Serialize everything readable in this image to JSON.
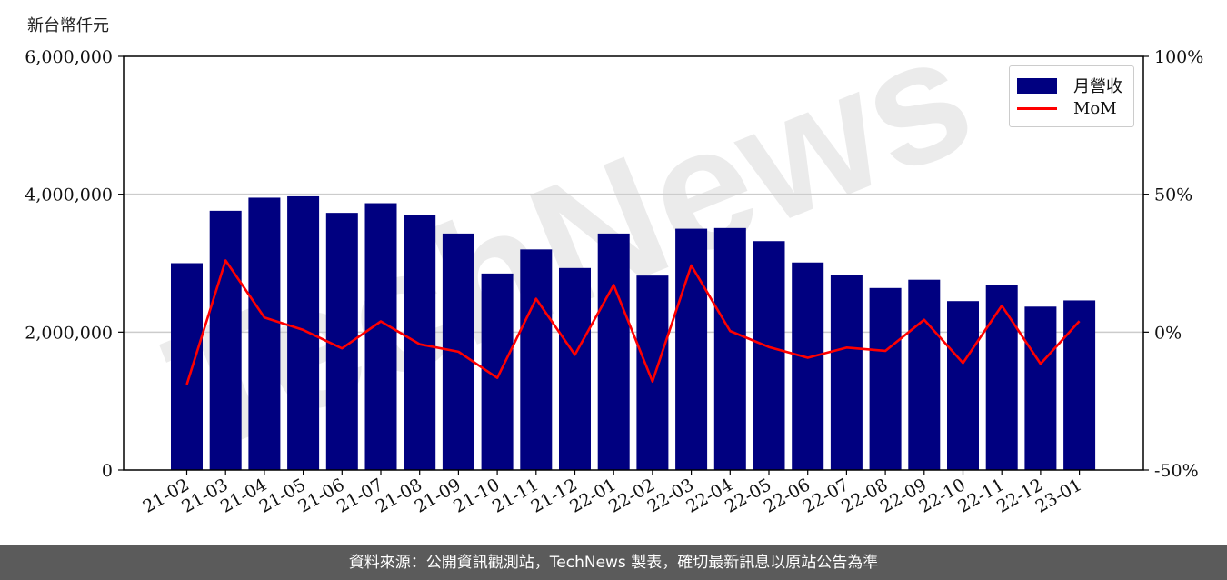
{
  "unit_label": "新台幣仟元",
  "footer": "資料來源：公開資訊觀測站，TechNews 製表，確切最新訊息以原站公告為準",
  "watermark": "TechNews",
  "colors": {
    "bar": "#000080",
    "line": "#ff0000",
    "grid": "#cccccc",
    "footer_bg": "#5b5b5b"
  },
  "chart_data": {
    "type": "bar",
    "categories": [
      "21-02",
      "21-03",
      "21-04",
      "21-05",
      "21-06",
      "21-07",
      "21-08",
      "21-09",
      "21-10",
      "21-11",
      "21-12",
      "22-01",
      "22-02",
      "22-03",
      "22-04",
      "22-05",
      "22-06",
      "22-07",
      "22-08",
      "22-09",
      "22-10",
      "22-11",
      "22-12",
      "23-01"
    ],
    "series": [
      {
        "name": "月營收",
        "type": "bar",
        "axis": "left",
        "values": [
          3000000,
          3760000,
          3950000,
          3970000,
          3730000,
          3870000,
          3700000,
          3430000,
          2850000,
          3200000,
          2930000,
          3430000,
          2820000,
          3500000,
          3510000,
          3320000,
          3010000,
          2830000,
          2640000,
          2760000,
          2450000,
          2680000,
          2370000,
          2460000
        ]
      },
      {
        "name": "MoM",
        "type": "line",
        "axis": "right",
        "values": [
          -19,
          26,
          5.3,
          0.8,
          -5.9,
          3.9,
          -4.4,
          -7.1,
          -16.6,
          12.1,
          -8.2,
          17.1,
          -17.9,
          24.2,
          0.4,
          -5.4,
          -9.3,
          -5.6,
          -6.8,
          4.5,
          -11.2,
          9.6,
          -11.5,
          4.0
        ]
      }
    ],
    "y_left": {
      "range": [
        0,
        6000000
      ],
      "ticks": [
        "0",
        "2,000,000",
        "4,000,000",
        "6,000,000"
      ]
    },
    "y_right": {
      "range": [
        -50,
        100
      ],
      "ticks": [
        "-50%",
        "0%",
        "50%",
        "100%"
      ]
    },
    "grid": "horizontal",
    "legend": {
      "position": "top-right",
      "entries": [
        "月營收",
        "MoM"
      ]
    }
  }
}
